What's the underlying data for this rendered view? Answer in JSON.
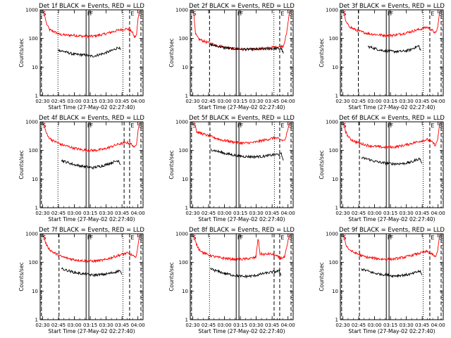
{
  "chart_data": {
    "type": "line",
    "title": "",
    "layout": "3x3 grid",
    "xlabel": "Start Time (27-May-02 02:27:40)",
    "ylabel": "Counts/sec",
    "xlim_minutes_from_start": [
      0,
      97.2
    ],
    "ylim": [
      1,
      1000
    ],
    "yscale": "log",
    "x_ticks": [
      "02:30",
      "02:45",
      "03:00",
      "03:15",
      "03:30",
      "03:45",
      "04:00"
    ],
    "x_tick_minutes": [
      2.33,
      17.33,
      32.33,
      47.33,
      62.33,
      77.33,
      92.33
    ],
    "y_ticks": [
      "1",
      "10",
      "100",
      "1000"
    ],
    "y_tick_values": [
      1,
      10,
      100,
      1000
    ],
    "markers": [
      {
        "label": "S",
        "minute": 1.2,
        "style": "dashed"
      },
      {
        "label": "F",
        "minute": 43.4,
        "style": "solid"
      },
      {
        "label": "F",
        "minute": 46.0,
        "style": "solid"
      },
      {
        "label": "E",
        "minute": 84.5,
        "style": "dashed"
      },
      {
        "label": "S",
        "minute": 95.2,
        "style": "dashed"
      }
    ],
    "series_colors": {
      "Events": "#000000",
      "LLD": "#ff0000"
    },
    "panels": [
      {
        "title": "Det 1f BLACK = Events, RED = LLD",
        "lines": [
          {
            "minute": 16.8,
            "style": "dotted"
          },
          {
            "minute": 78.2,
            "style": "dotted"
          }
        ],
        "series": [
          {
            "name": "LLD",
            "x": [
              3,
              6,
              7.5,
              9,
              12,
              15,
              18,
              25,
              32,
              40,
              50,
              60,
              68,
              75,
              82,
              87,
              89,
              91,
              92.5,
              94
            ],
            "y": [
              1000,
              330,
              250,
              200,
              180,
              160,
              140,
              130,
              130,
              120,
              120,
              140,
              170,
              200,
              220,
              170,
              110,
              130,
              500,
              1000
            ]
          },
          {
            "name": "Events",
            "x": [
              17,
              25,
              32,
              40,
              50,
              60,
              68,
              72,
              74,
              76
            ],
            "y": [
              40,
              33,
              28,
              27,
              24,
              30,
              38,
              45,
              50,
              40
            ]
          }
        ]
      },
      {
        "title": "Det 2f BLACK = Events, RED = LLD",
        "lines": [
          {
            "minute": 18.2,
            "style": "dashed"
          },
          {
            "minute": 79.0,
            "style": "dotted"
          }
        ],
        "series": [
          {
            "name": "LLD",
            "x": [
              3,
              5,
              8,
              15,
              20,
              30,
              40,
              50,
              60,
              70,
              80,
              88,
              91,
              94
            ],
            "y": [
              1000,
              140,
              95,
              75,
              65,
              52,
              45,
              42,
              42,
              45,
              50,
              55,
              150,
              1000
            ]
          },
          {
            "name": "Events",
            "x": [
              19,
              25,
              32,
              40,
              50,
              60,
              70,
              78,
              86,
              88
            ],
            "y": [
              60,
              55,
              48,
              44,
              42,
              42,
              43,
              44,
              45,
              30
            ]
          }
        ]
      },
      {
        "title": "Det 3f BLACK = Events, RED = LLD",
        "lines": [
          {
            "minute": 17.0,
            "style": "dashed"
          },
          {
            "minute": 78.2,
            "style": "dotted"
          }
        ],
        "series": [
          {
            "name": "LLD",
            "x": [
              3,
              5,
              7,
              9,
              12,
              16,
              20,
              26,
              32,
              40,
              50,
              60,
              68,
              75,
              82,
              87,
              90,
              92,
              94
            ],
            "y": [
              1000,
              400,
              300,
              260,
              220,
              190,
              170,
              150,
              140,
              130,
              130,
              150,
              180,
              210,
              250,
              190,
              150,
              250,
              1000
            ]
          },
          {
            "name": "Events",
            "x": [
              26,
              30,
              35,
              40,
              50,
              60,
              66,
              70,
              74,
              76
            ],
            "y": [
              52,
              48,
              42,
              38,
              35,
              36,
              40,
              48,
              55,
              38
            ]
          }
        ]
      },
      {
        "title": "Det 4f BLACK = Events, RED = LLD",
        "lines": [
          {
            "minute": 16.8,
            "style": "dotted"
          },
          {
            "minute": 79.3,
            "style": "dashed"
          }
        ],
        "series": [
          {
            "name": "LLD",
            "x": [
              3,
              5,
              7,
              9,
              12,
              16,
              20,
              26,
              32,
              40,
              50,
              60,
              68,
              75,
              82,
              87,
              89,
              91,
              92.5,
              94
            ],
            "y": [
              1000,
              500,
              320,
              270,
              220,
              190,
              160,
              140,
              120,
              105,
              100,
              110,
              140,
              170,
              190,
              160,
              120,
              180,
              500,
              1000
            ]
          },
          {
            "name": "Events",
            "x": [
              20,
              26,
              32,
              40,
              50,
              60,
              68,
              74,
              76
            ],
            "y": [
              45,
              38,
              32,
              28,
              25,
              30,
              38,
              45,
              32
            ]
          }
        ]
      },
      {
        "title": "Det 5f BLACK = Events, RED = LLD",
        "lines": [
          {
            "minute": 18.6,
            "style": "dashed"
          },
          {
            "minute": 79.5,
            "style": "dotted"
          }
        ],
        "series": [
          {
            "name": "LLD",
            "x": [
              3,
              5,
              6,
              10,
              20,
              30,
              40,
              50,
              60,
              70,
              80,
              88,
              90,
              92,
              94
            ],
            "y": [
              1000,
              700,
              450,
              400,
              300,
              230,
              200,
              180,
              190,
              230,
              280,
              220,
              250,
              500,
              1000
            ]
          },
          {
            "name": "Events",
            "x": [
              19,
              25,
              32,
              40,
              50,
              60,
              70,
              78,
              86,
              88
            ],
            "y": [
              110,
              95,
              80,
              70,
              62,
              60,
              63,
              70,
              75,
              45
            ]
          }
        ]
      },
      {
        "title": "Det 6f BLACK = Events, RED = LLD",
        "lines": [
          {
            "minute": 18.0,
            "style": "dashed"
          },
          {
            "minute": 78.2,
            "style": "dotted"
          }
        ],
        "series": [
          {
            "name": "LLD",
            "x": [
              3,
              5,
              7,
              9,
              12,
              16,
              20,
              26,
              32,
              40,
              50,
              60,
              68,
              75,
              82,
              87,
              90,
              92,
              94
            ],
            "y": [
              1000,
              450,
              320,
              260,
              220,
              190,
              170,
              150,
              140,
              130,
              130,
              150,
              180,
              210,
              240,
              190,
              150,
              250,
              1000
            ]
          },
          {
            "name": "Events",
            "x": [
              20,
              26,
              32,
              40,
              50,
              60,
              68,
              72,
              75,
              77
            ],
            "y": [
              55,
              50,
              42,
              37,
              34,
              35,
              40,
              48,
              52,
              35
            ]
          }
        ]
      },
      {
        "title": "Det 7f BLACK = Events, RED = LLD",
        "lines": [
          {
            "minute": 17.8,
            "style": "dashed"
          },
          {
            "minute": 78.2,
            "style": "dotted"
          }
        ],
        "series": [
          {
            "name": "LLD",
            "x": [
              3,
              5,
              7,
              9,
              12,
              16,
              20,
              26,
              32,
              40,
              50,
              60,
              68,
              75,
              82,
              87,
              90,
              92,
              94
            ],
            "y": [
              1000,
              500,
              350,
              280,
              230,
              190,
              160,
              140,
              125,
              115,
              110,
              120,
              150,
              180,
              210,
              180,
              140,
              300,
              1000
            ]
          },
          {
            "name": "Events",
            "x": [
              20,
              26,
              32,
              40,
              50,
              60,
              68,
              72,
              75,
              77
            ],
            "y": [
              60,
              52,
              45,
              40,
              36,
              38,
              43,
              48,
              52,
              38
            ]
          }
        ]
      },
      {
        "title": "Det 8f BLACK = Events, RED = LLD",
        "lines": [
          {
            "minute": 18.2,
            "style": "dotted"
          },
          {
            "minute": 79.2,
            "style": "dashed"
          }
        ],
        "series": [
          {
            "name": "LLD",
            "x": [
              3,
              5,
              8,
              12,
              16,
              20,
              26,
              32,
              40,
              50,
              58,
              62,
              64,
              66,
              70,
              75,
              80,
              85,
              89,
              91,
              93,
              94
            ],
            "y": [
              1000,
              500,
              300,
              220,
              190,
              170,
              150,
              140,
              130,
              130,
              140,
              150,
              700,
              200,
              190,
              200,
              180,
              140,
              150,
              300,
              700,
              1000
            ]
          },
          {
            "name": "Events",
            "x": [
              19,
              25,
              32,
              40,
              50,
              60,
              68,
              76,
              84,
              86
            ],
            "y": [
              60,
              50,
              42,
              36,
              32,
              34,
              40,
              45,
              50,
              35
            ]
          }
        ]
      },
      {
        "title": "Det 9f BLACK = Events, RED = LLD",
        "lines": [
          {
            "minute": 18.0,
            "style": "dashed"
          },
          {
            "minute": 78.2,
            "style": "dotted"
          }
        ],
        "series": [
          {
            "name": "LLD",
            "x": [
              3,
              5,
              7,
              9,
              12,
              16,
              20,
              26,
              32,
              40,
              50,
              60,
              68,
              75,
              82,
              87,
              90,
              92,
              94
            ],
            "y": [
              1000,
              450,
              320,
              270,
              230,
              200,
              170,
              150,
              140,
              130,
              130,
              150,
              180,
              210,
              240,
              190,
              150,
              280,
              1000
            ]
          },
          {
            "name": "Events",
            "x": [
              20,
              26,
              32,
              40,
              50,
              60,
              68,
              72,
              75,
              77
            ],
            "y": [
              58,
              50,
              42,
              38,
              34,
              36,
              40,
              46,
              50,
              36
            ]
          }
        ]
      }
    ]
  }
}
